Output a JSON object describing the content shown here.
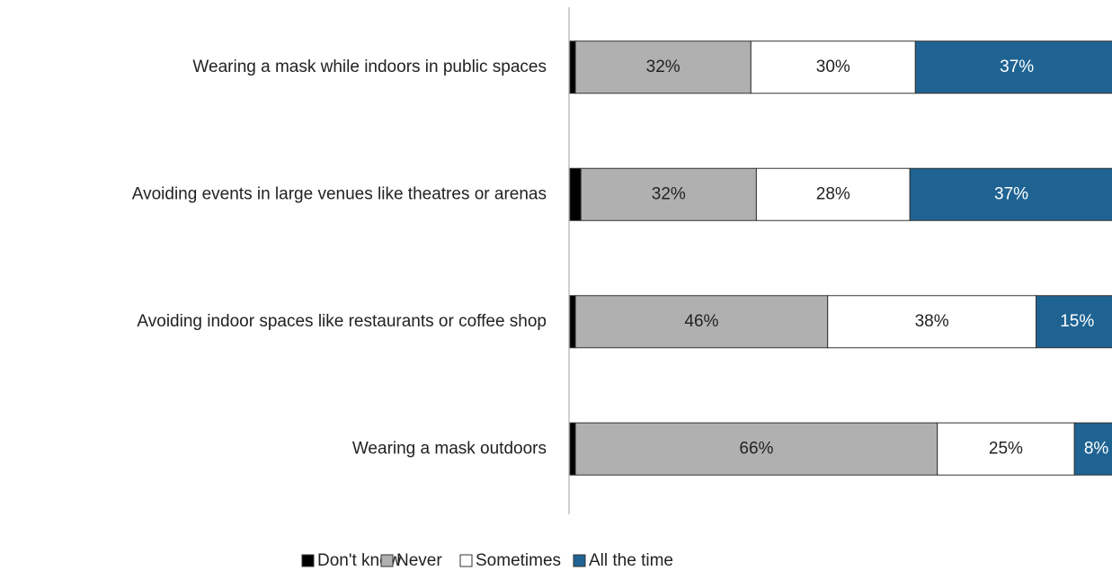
{
  "chart_data": {
    "type": "stacked-barh",
    "categories": [
      "Wearing a mask while indoors in public spaces",
      "Avoiding events in large venues like theatres or arenas",
      "Avoiding indoor spaces like restaurants or coffee shop",
      "Wearing a mask outdoors"
    ],
    "series": [
      {
        "name": "Don't know",
        "color": "#000000",
        "values": [
          1,
          2,
          1,
          1
        ]
      },
      {
        "name": "Never",
        "color": "#b0b0b0",
        "label_color": "#222222",
        "values": [
          32,
          32,
          46,
          66
        ],
        "value_labels": [
          "32%",
          "32%",
          "46%",
          "66%"
        ]
      },
      {
        "name": "Sometimes",
        "color": "#ffffff",
        "label_color": "#222222",
        "values": [
          30,
          28,
          38,
          25
        ],
        "value_labels": [
          "30%",
          "28%",
          "38%",
          "25%"
        ]
      },
      {
        "name": "All the time",
        "color": "#1f6392",
        "label_color": "#ffffff",
        "values": [
          37,
          37,
          15,
          8
        ],
        "value_labels": [
          "37%",
          "37%",
          "15%",
          "8%"
        ]
      }
    ],
    "xlim": [
      0,
      100
    ]
  }
}
